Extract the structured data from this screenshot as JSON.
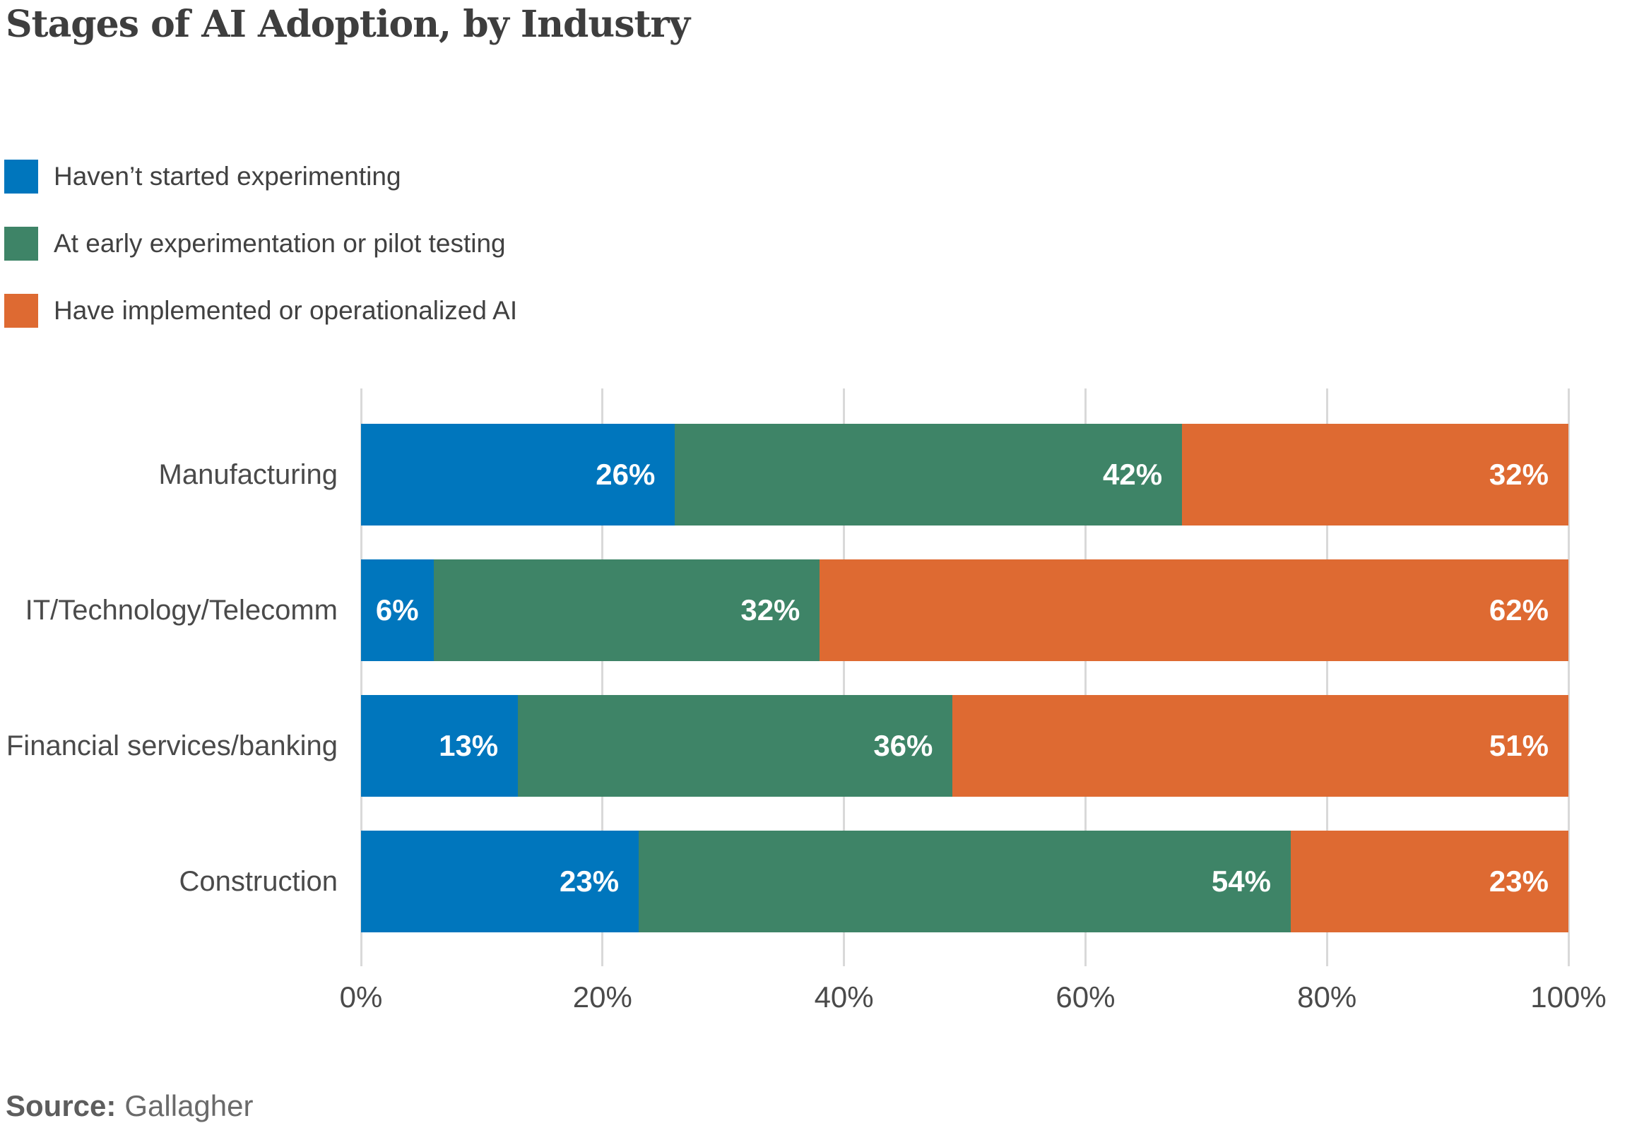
{
  "title": "Stages of AI Adoption, by Industry",
  "legend": {
    "items": [
      {
        "label": "Haven’t started experimenting",
        "color": "#0076BD"
      },
      {
        "label": "At early experimentation or pilot testing",
        "color": "#3E8467"
      },
      {
        "label": "Have implemented or operationalized AI",
        "color": "#DE6A32"
      }
    ]
  },
  "source": {
    "label": "Source:",
    "value": "Gallagher"
  },
  "colors": {
    "blue": "#0076BD",
    "green": "#3E8467",
    "orange": "#DE6A32",
    "gridline": "#d9d9d9",
    "text_dark": "#3e3e3e",
    "text_gray": "#4a4a4a",
    "source_gray": "#6a6a6a"
  },
  "chart_data": {
    "type": "bar",
    "stacked": true,
    "orientation": "horizontal",
    "title": "Stages of AI Adoption, by Industry",
    "categories": [
      "Manufacturing",
      "IT/Technology/Telecomm",
      "Financial services/banking",
      "Construction"
    ],
    "series": [
      {
        "name": "Haven’t started experimenting",
        "color": "#0076BD",
        "values": [
          26,
          6,
          13,
          23
        ]
      },
      {
        "name": "At early experimentation or pilot testing",
        "color": "#3E8467",
        "values": [
          42,
          32,
          36,
          54
        ]
      },
      {
        "name": "Have implemented or operationalized AI",
        "color": "#DE6A32",
        "values": [
          32,
          62,
          51,
          23
        ]
      }
    ],
    "xlabel": "",
    "ylabel": "",
    "xlim": [
      0,
      100
    ],
    "x_ticks": [
      "0%",
      "20%",
      "40%",
      "60%",
      "80%",
      "100%"
    ],
    "grid": "vertical",
    "legend_position": "top-left",
    "value_suffix": "%",
    "value_labels": "inside-end"
  }
}
